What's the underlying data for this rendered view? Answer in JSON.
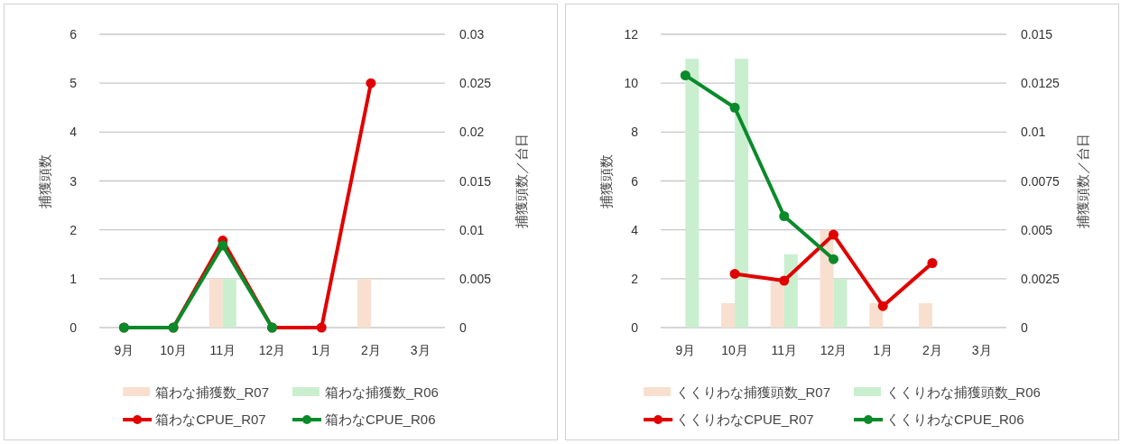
{
  "chart_data": [
    {
      "type": "bar",
      "categories": [
        "9月",
        "10月",
        "11月",
        "12月",
        "1月",
        "2月",
        "3月"
      ],
      "ylabel": "捕獲頭数",
      "y2label": "捕獲頭数／台日",
      "ylim": [
        0,
        6
      ],
      "yticks": [
        0,
        1,
        2,
        3,
        4,
        5,
        6
      ],
      "y2lim": [
        0,
        0.03
      ],
      "y2ticks": [
        0,
        0.005,
        0.01,
        0.015,
        0.02,
        0.025,
        0.03
      ],
      "grid": "y",
      "legend": "bottom",
      "marker": "circle",
      "series": [
        {
          "name": "箱わな捕獲数_R07",
          "color": "#f9dfcf",
          "values": [
            null,
            null,
            1,
            null,
            null,
            1,
            null
          ]
        },
        {
          "name": "箱わな捕獲数_R06",
          "color": "#c9efcf",
          "values": [
            null,
            null,
            1,
            null,
            null,
            null,
            null
          ]
        },
        {
          "name": "箱わなCPUE_R07",
          "type": "line",
          "axis": "y2",
          "color": "#e00000",
          "values": [
            0,
            0,
            0.0089,
            0,
            0,
            0.025,
            null
          ]
        },
        {
          "name": "箱わなCPUE_R06",
          "type": "line",
          "axis": "y2",
          "color": "#0a8a2a",
          "values": [
            0,
            0,
            0.0084,
            0,
            null,
            null,
            null
          ]
        }
      ]
    },
    {
      "type": "bar",
      "categories": [
        "9月",
        "10月",
        "11月",
        "12月",
        "1月",
        "2月",
        "3月"
      ],
      "ylabel": "捕獲頭数",
      "y2label": "捕獲頭数／台日",
      "ylim": [
        0,
        12
      ],
      "yticks": [
        0,
        2,
        4,
        6,
        8,
        10,
        12
      ],
      "y2lim": [
        0,
        0.015
      ],
      "y2ticks": [
        0,
        0.0025,
        0.005,
        0.0075,
        0.01,
        0.0125,
        0.015
      ],
      "grid": "y",
      "legend": "bottom",
      "marker": "circle",
      "series": [
        {
          "name": "くくりわな捕獲頭数_R07",
          "color": "#f9dfcf",
          "values": [
            null,
            1,
            2,
            4,
            1,
            1,
            null
          ]
        },
        {
          "name": "くくりわな捕獲頭数_R06",
          "color": "#c9efcf",
          "values": [
            11,
            11,
            3,
            2,
            null,
            null,
            null
          ]
        },
        {
          "name": "くくりわなCPUE_R07",
          "type": "line",
          "axis": "y2",
          "color": "#e00000",
          "values": [
            null,
            0.00275,
            0.0024,
            0.00475,
            0.0011,
            0.0033,
            null
          ]
        },
        {
          "name": "くくりわなCPUE_R06",
          "type": "line",
          "axis": "y2",
          "color": "#0a8a2a",
          "values": [
            0.0129,
            0.01125,
            0.0057,
            0.0035,
            null,
            null,
            null
          ]
        }
      ]
    }
  ]
}
